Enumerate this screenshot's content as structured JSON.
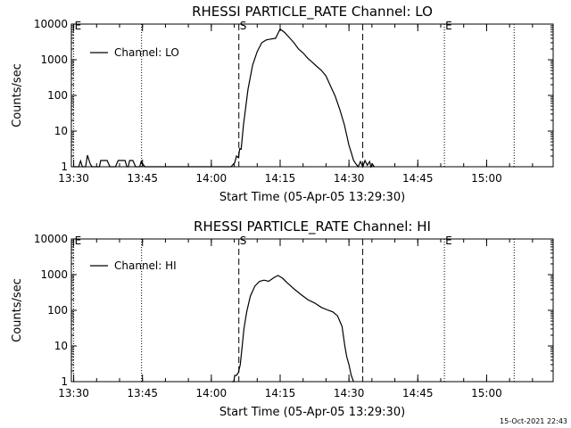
{
  "footer_timestamp": "15-Oct-2021 22:43",
  "chart_data": [
    {
      "type": "line",
      "title": "RHESSI PARTICLE_RATE Channel: LO",
      "xlabel": "Start Time (05-Apr-05 13:29:30)",
      "ylabel": "Counts/sec",
      "yscale": "log",
      "ylim": [
        1,
        10000
      ],
      "xlim_min": [
        0,
        105
      ],
      "y_ticks": [
        1,
        10,
        100,
        1000,
        10000
      ],
      "y_tick_labels": [
        "1",
        "10",
        "100",
        "1000",
        "10000"
      ],
      "x_ticks_min": [
        0.5,
        15.5,
        30.5,
        45.5,
        60.5,
        75.5,
        90.5
      ],
      "x_tick_labels": [
        "13:30",
        "13:45",
        "14:00",
        "14:15",
        "14:30",
        "14:45",
        "15:00"
      ],
      "markers": [
        {
          "label": "E",
          "x_min": 0.5,
          "style": "dotted"
        },
        {
          "label": "",
          "x_min": 15.3,
          "style": "dotted"
        },
        {
          "label": "S",
          "x_min": 36.5,
          "style": "dashed"
        },
        {
          "label": "",
          "x_min": 63.5,
          "style": "dashed"
        },
        {
          "label": "E",
          "x_min": 81.3,
          "style": "dotted"
        },
        {
          "label": "",
          "x_min": 96.5,
          "style": "dotted"
        }
      ],
      "series": [
        {
          "name": "Channel: LO",
          "x_min": [
            0.5,
            1.6,
            2.0,
            2.4,
            2.8,
            3.1,
            3.5,
            4.1,
            4.5,
            5.0,
            5.3,
            6.1,
            6.4,
            7.8,
            8.4,
            9.6,
            10.2,
            10.5,
            11.0,
            11.7,
            12.1,
            12.4,
            12.7,
            13.4,
            14.0,
            14.5,
            14.9,
            15.2,
            16.0,
            33.5,
            34.8,
            35.6,
            36.0,
            36.4,
            36.7,
            37.0,
            37.5,
            38.5,
            39.5,
            40.5,
            41.5,
            42.5,
            43.5,
            44.5,
            45.5,
            46.5,
            47.5,
            48.5,
            49.5,
            50.5,
            51.5,
            52.5,
            53.5,
            54.5,
            55.5,
            56.5,
            57.5,
            58.5,
            59.5,
            60.5,
            61.0,
            61.5,
            62.0,
            62.5,
            63.0,
            63.5,
            64.0,
            64.5,
            65.0,
            65.3,
            65.6,
            66.0
          ],
          "values": [
            1,
            1,
            1.45,
            1,
            1,
            1,
            2.1,
            1.2,
            1,
            1,
            1,
            1,
            1.5,
            1.5,
            1,
            1,
            1.5,
            1.5,
            1.5,
            1.5,
            1,
            1,
            1.5,
            1.5,
            1,
            1,
            1,
            1.4,
            1,
            1,
            1,
            1.3,
            2,
            1.8,
            3.2,
            3.1,
            15,
            150,
            700,
            1700,
            3000,
            3600,
            3800,
            4000,
            7300,
            5800,
            4200,
            3000,
            2000,
            1550,
            1100,
            850,
            650,
            500,
            350,
            180,
            95,
            40,
            15,
            4,
            2.5,
            1.5,
            1.2,
            1,
            1.4,
            1,
            1.5,
            1.1,
            1.4,
            1,
            1.2,
            1
          ]
        }
      ]
    },
    {
      "type": "line",
      "title": "RHESSI PARTICLE_RATE Channel: HI",
      "xlabel": "Start Time (05-Apr-05 13:29:30)",
      "ylabel": "Counts/sec",
      "yscale": "log",
      "ylim": [
        1,
        10000
      ],
      "xlim_min": [
        0,
        105
      ],
      "y_ticks": [
        1,
        10,
        100,
        1000,
        10000
      ],
      "y_tick_labels": [
        "1",
        "10",
        "100",
        "1000",
        "10000"
      ],
      "x_ticks_min": [
        0.5,
        15.5,
        30.5,
        45.5,
        60.5,
        75.5,
        90.5
      ],
      "x_tick_labels": [
        "13:30",
        "13:45",
        "14:00",
        "14:15",
        "14:30",
        "14:45",
        "15:00"
      ],
      "markers": [
        {
          "label": "E",
          "x_min": 0.5,
          "style": "dotted"
        },
        {
          "label": "",
          "x_min": 15.3,
          "style": "dotted"
        },
        {
          "label": "S",
          "x_min": 36.5,
          "style": "dashed"
        },
        {
          "label": "",
          "x_min": 63.5,
          "style": "dashed"
        },
        {
          "label": "E",
          "x_min": 81.3,
          "style": "dotted"
        },
        {
          "label": "",
          "x_min": 96.5,
          "style": "dotted"
        }
      ],
      "series": [
        {
          "name": "Channel: HI",
          "x_min": [
            35.0,
            35.4,
            35.6,
            36.0,
            36.4,
            36.8,
            37.2,
            37.6,
            38.2,
            39.0,
            40.0,
            41.0,
            42.0,
            43.0,
            44.0,
            45.0,
            46.0,
            47.0,
            48.5,
            50.0,
            51.5,
            53.0,
            54.5,
            56.0,
            57.0,
            58.0,
            59.0,
            59.6,
            60.0,
            60.5,
            61.0,
            61.5
          ],
          "values": [
            1,
            1,
            1.5,
            1.5,
            1.8,
            3,
            9,
            30,
            90,
            250,
            480,
            650,
            700,
            650,
            800,
            950,
            800,
            600,
            400,
            280,
            200,
            160,
            120,
            100,
            90,
            70,
            35,
            10,
            5,
            3,
            1.5,
            1
          ]
        }
      ]
    }
  ]
}
